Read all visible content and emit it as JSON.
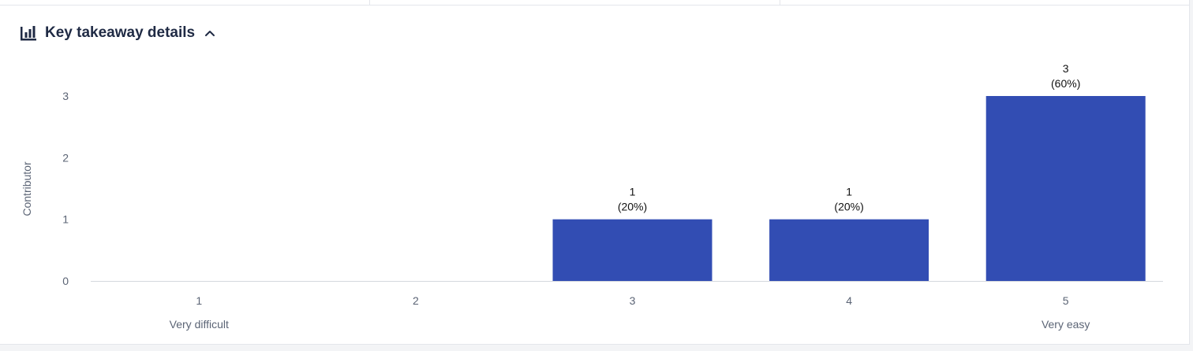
{
  "section": {
    "title": "Key takeaway details",
    "icon": "bar-chart-icon",
    "toggle_icon": "chevron-up-icon"
  },
  "colors": {
    "bar": "#324db3",
    "axis_text": "#5b6475",
    "label_text": "#111111",
    "baseline": "#d5d8de"
  },
  "chart_data": {
    "type": "bar",
    "categories": [
      "1",
      "2",
      "3",
      "4",
      "5"
    ],
    "category_sublabels": [
      "Very difficult",
      "",
      "",
      "",
      "Very easy"
    ],
    "values": [
      0,
      0,
      1,
      1,
      3
    ],
    "data_labels": [
      "",
      "",
      "1",
      "1",
      "3"
    ],
    "percent_labels": [
      "",
      "",
      "(20%)",
      "(20%)",
      "(60%)"
    ],
    "ylabel": "Contributor",
    "xlabel": "",
    "yticks": [
      0,
      1,
      2,
      3
    ],
    "ylim": [
      0,
      3
    ],
    "grid": false
  }
}
